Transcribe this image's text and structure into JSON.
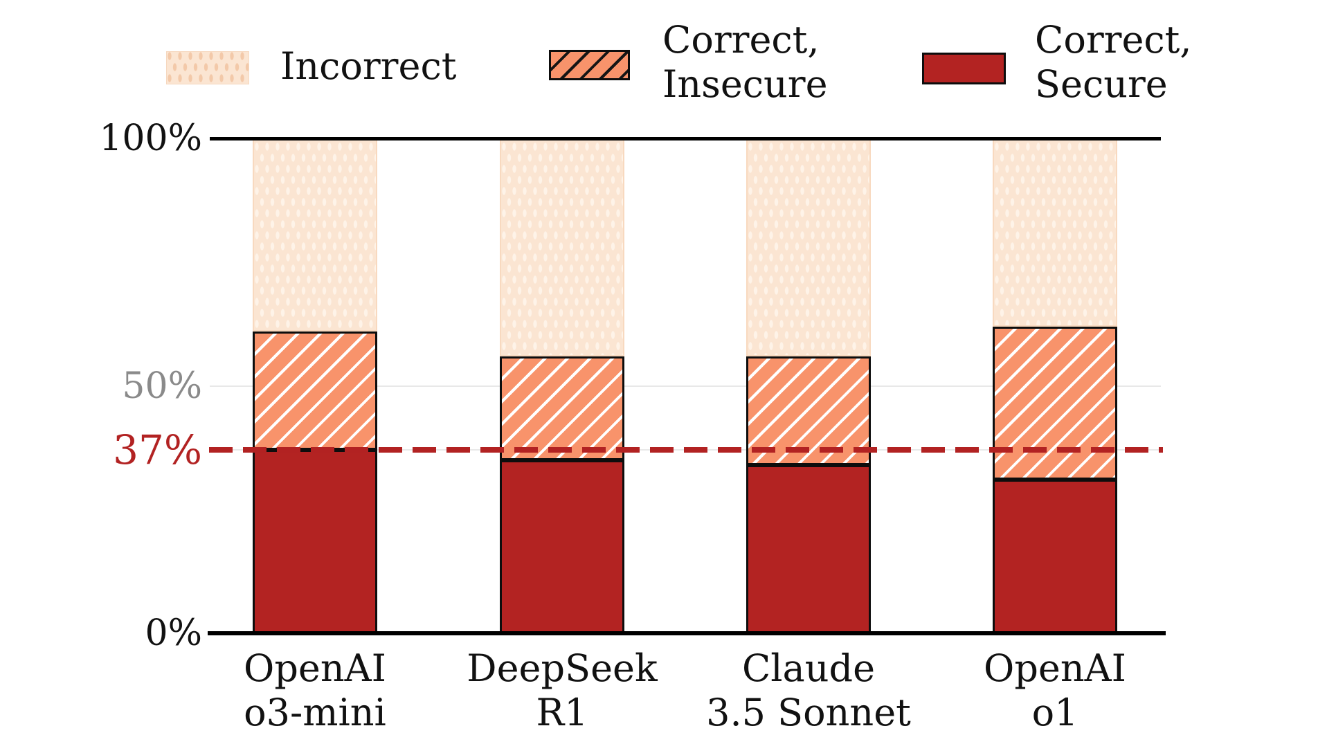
{
  "legend": {
    "items": [
      {
        "id": "incorrect",
        "line1": "Incorrect",
        "line2": "",
        "swatch": "dots-peach"
      },
      {
        "id": "correct-insecure",
        "line1": "Correct,",
        "line2": "Insecure",
        "swatch": "hatched-salmon"
      },
      {
        "id": "correct-secure",
        "line1": "Correct,",
        "line2": "Secure",
        "swatch": "solid-darkred"
      }
    ]
  },
  "chart_data": {
    "type": "bar",
    "stacked": true,
    "categories": [
      "OpenAI o3-mini",
      "DeepSeek R1",
      "Claude 3.5 Sonnet",
      "OpenAI o1"
    ],
    "categories_lines": [
      [
        "OpenAI",
        "o3-mini"
      ],
      [
        "DeepSeek",
        "R1"
      ],
      [
        "Claude",
        "3.5 Sonnet"
      ],
      [
        "OpenAI",
        "o1"
      ]
    ],
    "series": [
      {
        "name": "Correct, Secure",
        "values": [
          37,
          35,
          34,
          31
        ],
        "color": "#B32322",
        "pattern": "solid"
      },
      {
        "name": "Correct, Insecure",
        "values": [
          24,
          21,
          22,
          31
        ],
        "color": "#F8936B",
        "pattern": "white-diagonal-hatch"
      },
      {
        "name": "Incorrect",
        "values": [
          39,
          44,
          44,
          38
        ],
        "color": "#FBE5D2",
        "pattern": "light-dots"
      }
    ],
    "ylim": [
      0,
      100
    ],
    "yticks": [
      {
        "label": "100%",
        "value": 100,
        "color": "#111111"
      },
      {
        "label": "50%",
        "value": 50,
        "color": "#8A8A8A"
      },
      {
        "label": "37%",
        "value": 37,
        "color": "#B22222"
      },
      {
        "label": "0%",
        "value": 0,
        "color": "#111111"
      }
    ],
    "gridline_values": [
      50,
      37
    ],
    "reference_line": {
      "value": 37,
      "label": "37%",
      "color": "#B22222",
      "style": "dashed"
    },
    "legend_position": "top",
    "colors": {
      "axis": "#000000",
      "grid": "#E8E8E8",
      "secure": "#B32322",
      "insecure": "#F8936B",
      "incorrect": "#FBE5D2"
    }
  }
}
